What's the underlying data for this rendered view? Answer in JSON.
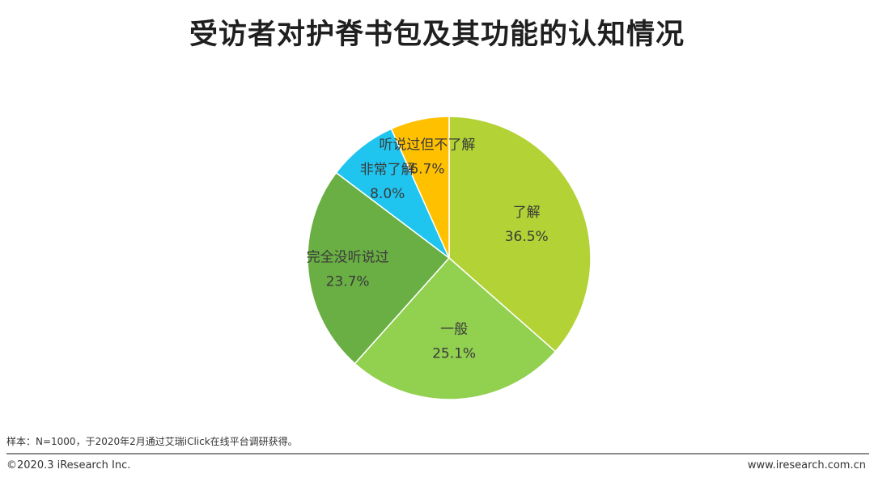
{
  "title": "受访者对护脊书包及其功能的认知情况",
  "note": "样本：N=1000，于2020年2月通过艾瑞iClick在线平台调研获得。",
  "footer": {
    "copyright": "©2020.3 iResearch Inc.",
    "website": "www.iresearch.com.cn"
  },
  "chart_data": {
    "type": "pie",
    "title": "受访者对护脊书包及其功能的认知情况",
    "slices": [
      {
        "name": "了解",
        "value": 36.5,
        "label": "36.5%",
        "color": "#b2d235"
      },
      {
        "name": "一般",
        "value": 25.1,
        "label": "25.1%",
        "color": "#92d050"
      },
      {
        "name": "完全没听说过",
        "value": 23.7,
        "label": "23.7%",
        "color": "#6aaf44"
      },
      {
        "name": "非常了解",
        "value": 8.0,
        "label": "8.0%",
        "color": "#1fc5ef"
      },
      {
        "name": "听说过但不了解",
        "value": 6.7,
        "label": "6.7%",
        "color": "#ffc000"
      }
    ],
    "start_angle": "12 o'clock",
    "direction": "clockwise",
    "legend": "none",
    "labels": "inside"
  }
}
